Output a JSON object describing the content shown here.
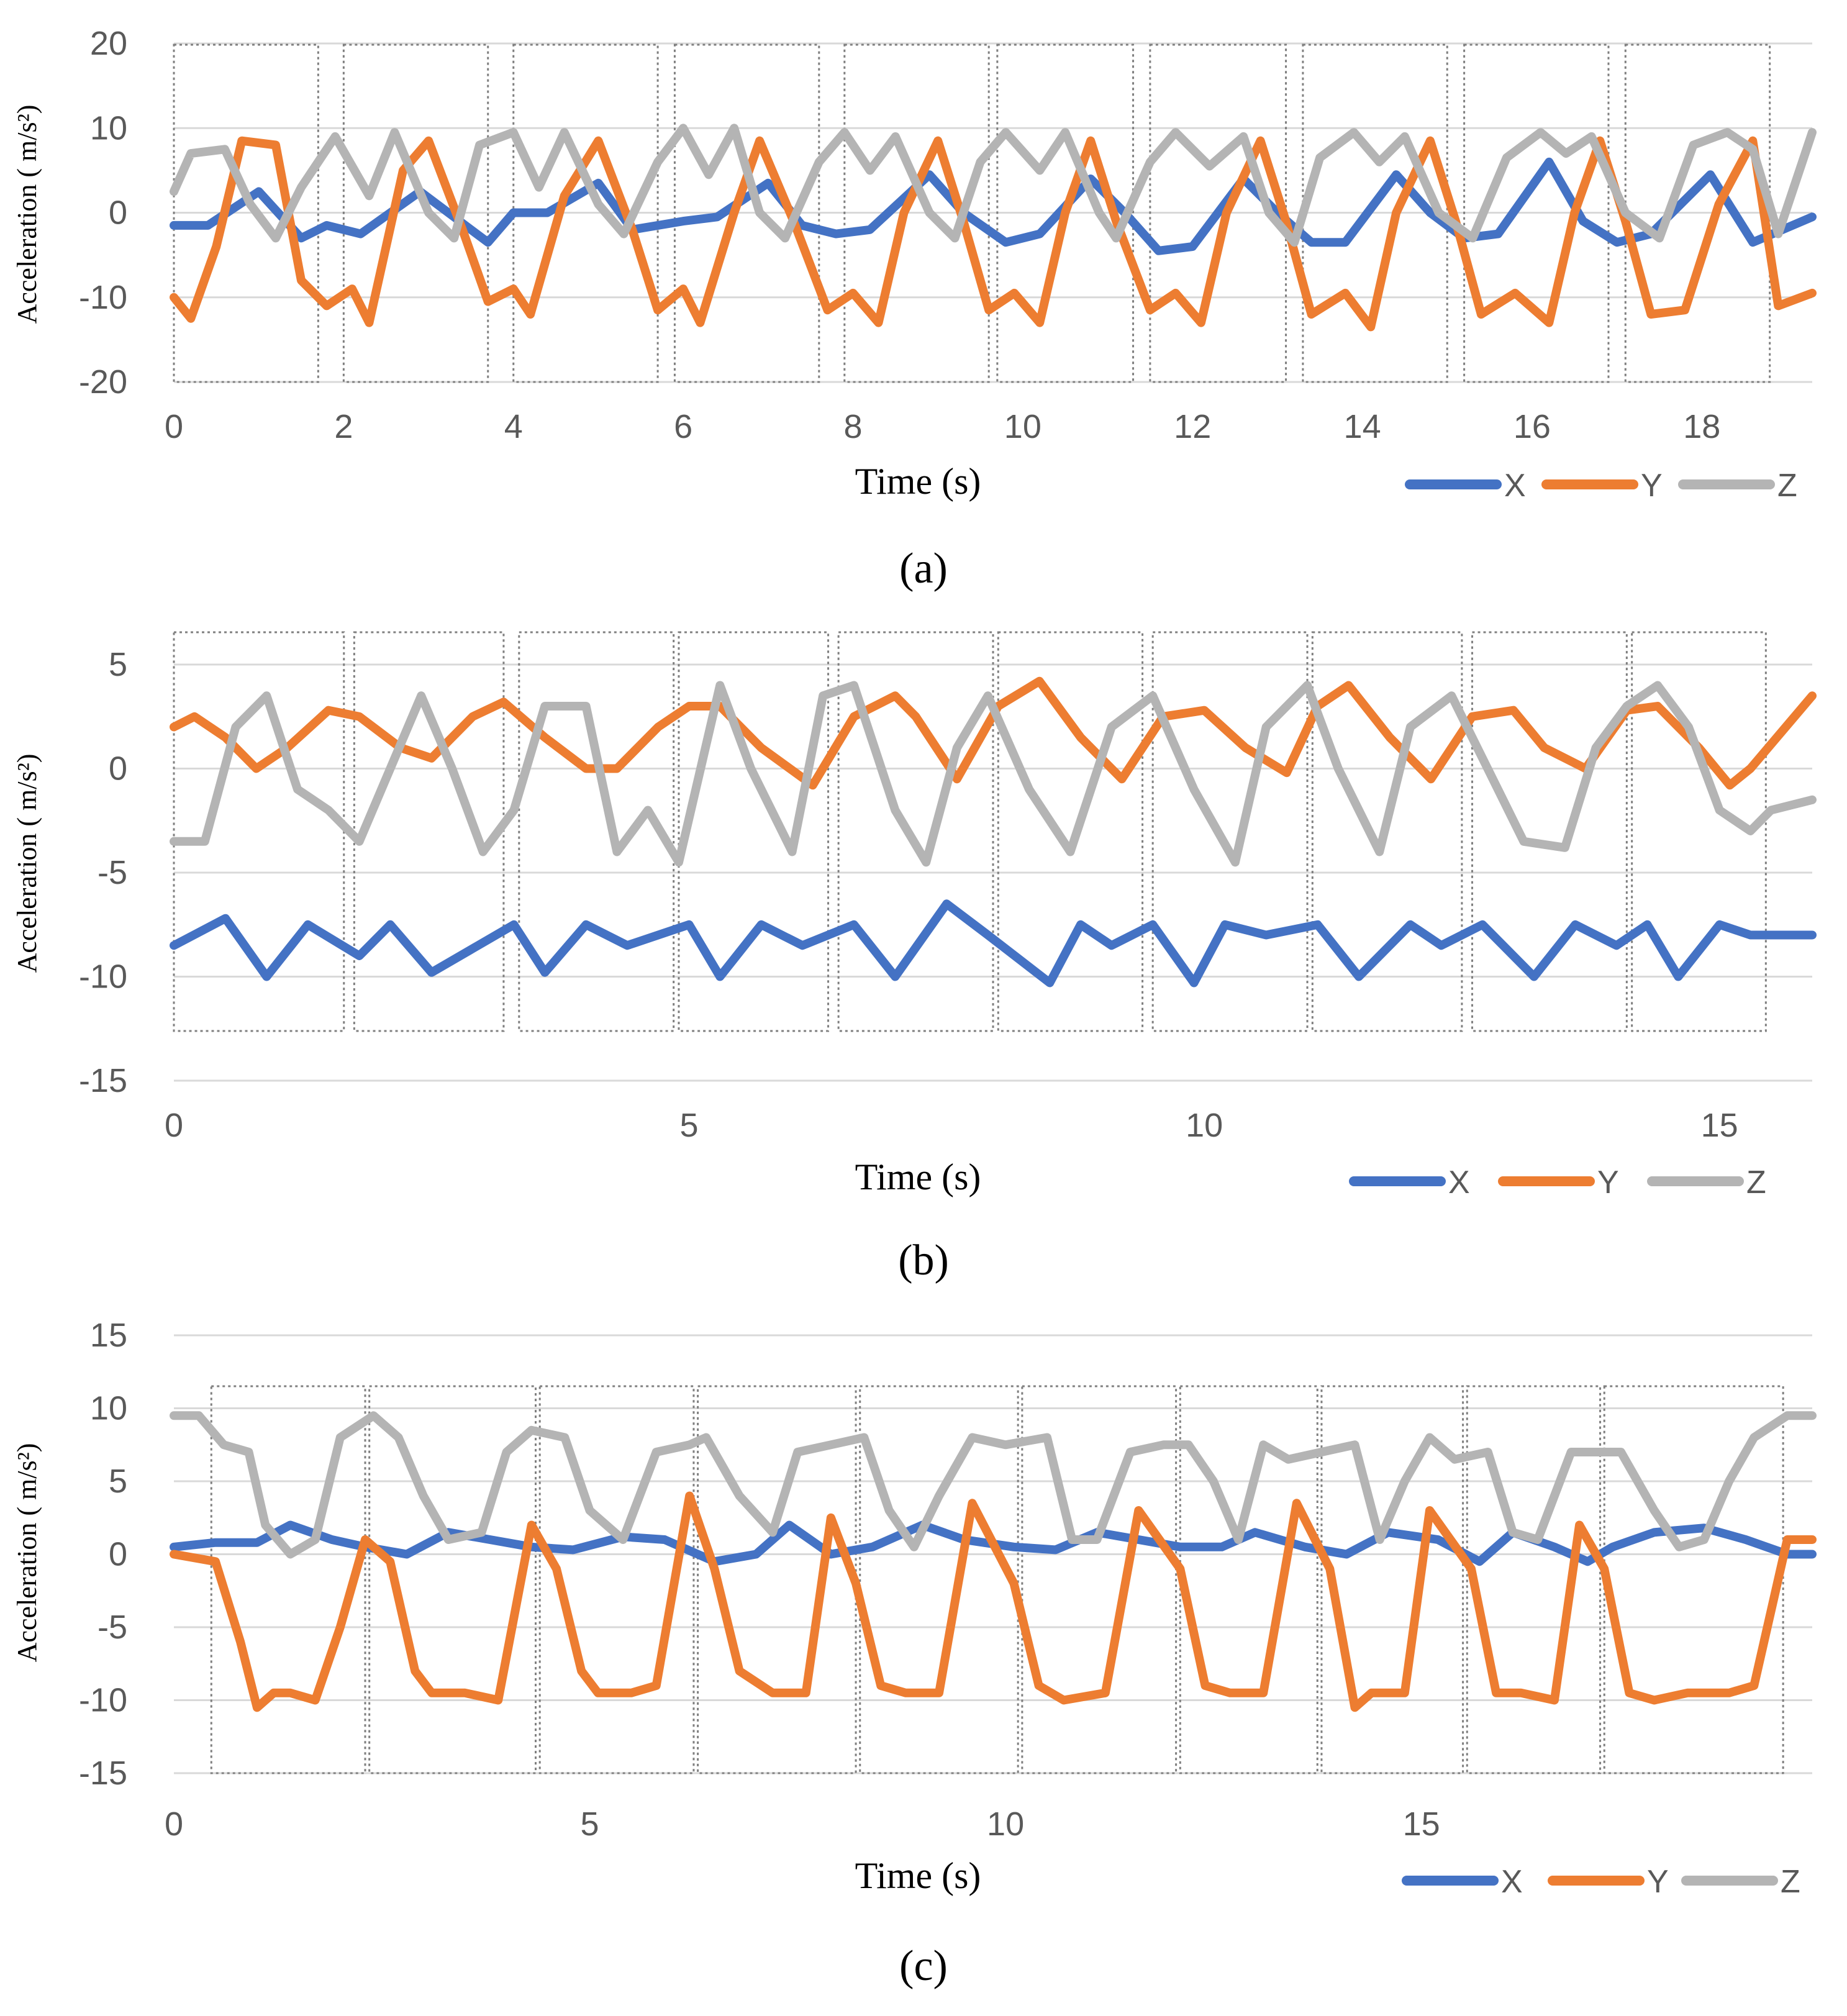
{
  "colors": {
    "X": "#4472c4",
    "Y": "#ed7d31",
    "Z": "#b4b4b4"
  },
  "chart_data": [
    {
      "type": "line",
      "panel_label": "(a)",
      "xlabel": "Time (s)",
      "ylabel": "Acceleration ( m/s²)",
      "xlim": [
        0,
        19.3
      ],
      "ylim": [
        -20,
        20
      ],
      "xticks": [
        "0",
        "2",
        "4",
        "6",
        "8",
        "10",
        "12",
        "14",
        "16",
        "18"
      ],
      "yticks": [
        "-20",
        "-10",
        "0",
        "10",
        "20"
      ],
      "legend": [
        "X",
        "Y",
        "Z"
      ],
      "legend_position": "bottom-right",
      "segments": [
        [
          0,
          1.7
        ],
        [
          2.0,
          3.7
        ],
        [
          4.0,
          5.7
        ],
        [
          5.9,
          7.6
        ],
        [
          7.9,
          9.6
        ],
        [
          9.7,
          11.3
        ],
        [
          11.5,
          13.1
        ],
        [
          13.3,
          15.0
        ],
        [
          15.2,
          16.9
        ],
        [
          17.1,
          18.8
        ]
      ],
      "series": [
        {
          "name": "X",
          "x": [
            0,
            0.4,
            1.0,
            1.5,
            1.8,
            2.2,
            2.9,
            3.3,
            3.7,
            4.0,
            4.4,
            5.0,
            5.4,
            6.0,
            6.4,
            7.0,
            7.4,
            7.8,
            8.2,
            8.9,
            9.3,
            9.8,
            10.2,
            10.8,
            11.2,
            11.6,
            12.0,
            12.6,
            13.0,
            13.4,
            13.8,
            14.4,
            14.8,
            15.2,
            15.6,
            16.2,
            16.6,
            17.0,
            17.4,
            18.1,
            18.6,
            19.3
          ],
          "values": [
            -1.5,
            -1.5,
            2.5,
            -3.0,
            -1.5,
            -2.5,
            2.5,
            -0.5,
            -3.5,
            0.0,
            0.0,
            3.5,
            -2.0,
            -1.0,
            -0.5,
            3.5,
            -1.5,
            -2.5,
            -2.0,
            4.5,
            0.0,
            -3.5,
            -2.5,
            4.0,
            0.0,
            -4.5,
            -4.0,
            4.0,
            0.0,
            -3.5,
            -3.5,
            4.5,
            0.0,
            -3.0,
            -2.5,
            6.0,
            -1.0,
            -3.5,
            -2.5,
            4.5,
            -3.5,
            -0.5
          ]
        },
        {
          "name": "Y",
          "x": [
            0,
            0.2,
            0.5,
            0.8,
            1.2,
            1.5,
            1.8,
            2.1,
            2.3,
            2.7,
            3.0,
            3.4,
            3.7,
            4.0,
            4.2,
            4.6,
            5.0,
            5.4,
            5.7,
            6.0,
            6.2,
            6.6,
            6.9,
            7.3,
            7.7,
            8.0,
            8.3,
            8.6,
            9.0,
            9.3,
            9.6,
            9.9,
            10.2,
            10.5,
            10.8,
            11.1,
            11.5,
            11.8,
            12.1,
            12.4,
            12.8,
            13.1,
            13.4,
            13.8,
            14.1,
            14.4,
            14.8,
            15.1,
            15.4,
            15.8,
            16.2,
            16.5,
            16.8,
            17.1,
            17.4,
            17.8,
            18.2,
            18.6,
            18.9,
            19.3
          ],
          "values": [
            -10,
            -12.5,
            -4,
            8.5,
            8,
            -8,
            -11,
            -9,
            -13,
            5,
            8.5,
            -2,
            -10.5,
            -9,
            -12,
            2,
            8.5,
            -2,
            -11.5,
            -9,
            -13,
            0,
            8.5,
            -1,
            -11.5,
            -9.5,
            -13,
            0,
            8.5,
            -1,
            -11.5,
            -9.5,
            -13,
            0,
            8.5,
            -1,
            -11.5,
            -9.5,
            -13,
            0,
            8.5,
            -1,
            -12,
            -9.5,
            -13.5,
            0,
            8.5,
            -1,
            -12,
            -9.5,
            -13,
            0,
            8.5,
            -1,
            -12,
            -11.5,
            1,
            8.5,
            -11,
            -9.5
          ]
        },
        {
          "name": "Z",
          "x": [
            0,
            0.2,
            0.6,
            0.9,
            1.2,
            1.5,
            1.9,
            2.3,
            2.6,
            3.0,
            3.3,
            3.6,
            4.0,
            4.3,
            4.6,
            5.0,
            5.3,
            5.7,
            6.0,
            6.3,
            6.6,
            6.9,
            7.2,
            7.6,
            7.9,
            8.2,
            8.5,
            8.9,
            9.2,
            9.5,
            9.8,
            10.2,
            10.5,
            10.9,
            11.1,
            11.5,
            11.8,
            12.2,
            12.6,
            12.9,
            13.2,
            13.5,
            13.9,
            14.2,
            14.5,
            14.9,
            15.3,
            15.7,
            16.1,
            16.4,
            16.7,
            17.1,
            17.5,
            17.9,
            18.3,
            18.6,
            18.9,
            19.3
          ],
          "values": [
            2.5,
            7,
            7.5,
            1,
            -3,
            3,
            9,
            2,
            9.5,
            0,
            -3,
            8,
            9.5,
            3,
            9.5,
            1,
            -2.5,
            6,
            10,
            4.5,
            10,
            0,
            -3,
            6,
            9.5,
            5,
            9,
            0,
            -3,
            6,
            9.5,
            5,
            9.5,
            0,
            -3,
            6,
            9.5,
            5.5,
            9,
            0,
            -3.5,
            6.5,
            9.5,
            6,
            9,
            0,
            -3,
            6.5,
            9.5,
            7,
            9,
            0,
            -3,
            8,
            9.5,
            7.5,
            -2.5,
            9.5
          ]
        }
      ]
    },
    {
      "type": "line",
      "panel_label": "(b)",
      "xlabel": "Time (s)",
      "ylabel": "Acceleration ( m/s²)",
      "xlim": [
        0,
        15.9
      ],
      "ylim": [
        -15,
        5
      ],
      "xticks": [
        "0",
        "5",
        "10",
        "15"
      ],
      "yticks": [
        "-15",
        "-10",
        "-5",
        "0",
        "5"
      ],
      "legend": [
        "X",
        "Y",
        "Z"
      ],
      "legend_position": "bottom-right",
      "segments": [
        [
          0,
          1.65
        ],
        [
          1.75,
          3.2
        ],
        [
          3.35,
          4.85
        ],
        [
          4.9,
          6.35
        ],
        [
          6.45,
          7.95
        ],
        [
          8.0,
          9.4
        ],
        [
          9.5,
          11.0
        ],
        [
          11.05,
          12.5
        ],
        [
          12.6,
          14.1
        ],
        [
          14.15,
          15.45
        ]
      ],
      "series": [
        {
          "name": "X",
          "x": [
            0,
            0.5,
            0.9,
            1.3,
            1.8,
            2.1,
            2.5,
            3.3,
            3.6,
            4.0,
            4.4,
            5.0,
            5.3,
            5.7,
            6.1,
            6.6,
            7.0,
            7.5,
            7.9,
            8.5,
            8.8,
            9.1,
            9.5,
            9.9,
            10.2,
            10.6,
            11.1,
            11.5,
            12.0,
            12.3,
            12.7,
            13.2,
            13.6,
            14.0,
            14.3,
            14.6,
            15.0,
            15.3,
            15.9
          ],
          "values": [
            -8.5,
            -7.2,
            -10,
            -7.5,
            -9,
            -7.5,
            -9.8,
            -7.5,
            -9.8,
            -7.5,
            -8.5,
            -7.5,
            -10,
            -7.5,
            -8.5,
            -7.5,
            -10,
            -6.5,
            -8,
            -10.3,
            -7.5,
            -8.5,
            -7.5,
            -10.3,
            -7.5,
            -8,
            -7.5,
            -10,
            -7.5,
            -8.5,
            -7.5,
            -10,
            -7.5,
            -8.5,
            -7.5,
            -10,
            -7.5,
            -8,
            -8
          ]
        },
        {
          "name": "Y",
          "x": [
            0,
            0.2,
            0.5,
            0.8,
            1.1,
            1.5,
            1.8,
            2.2,
            2.5,
            2.9,
            3.2,
            3.6,
            4.0,
            4.3,
            4.7,
            5.0,
            5.3,
            5.7,
            6.2,
            6.6,
            7.0,
            7.2,
            7.6,
            8.0,
            8.4,
            8.8,
            9.2,
            9.6,
            10.0,
            10.4,
            10.8,
            11.1,
            11.4,
            11.8,
            12.2,
            12.6,
            13.0,
            13.3,
            13.7,
            14.1,
            14.4,
            14.8,
            15.1,
            15.3,
            15.9
          ],
          "values": [
            2,
            2.5,
            1.5,
            0,
            1,
            2.8,
            2.5,
            1,
            0.5,
            2.5,
            3.2,
            1.5,
            0,
            0,
            2,
            3,
            3,
            1,
            -0.8,
            2.5,
            3.5,
            2.5,
            -0.5,
            3,
            4.2,
            1.5,
            -0.5,
            2.5,
            2.8,
            1,
            -0.2,
            3,
            4,
            1.5,
            -0.5,
            2.5,
            2.8,
            1,
            0,
            2.8,
            3,
            1,
            -0.8,
            0,
            3.5
          ]
        },
        {
          "name": "Z",
          "x": [
            0,
            0.3,
            0.6,
            0.9,
            1.2,
            1.5,
            1.8,
            2.1,
            2.4,
            2.7,
            3.0,
            3.3,
            3.6,
            4.0,
            4.3,
            4.6,
            4.9,
            5.3,
            5.6,
            6.0,
            6.3,
            6.6,
            7.0,
            7.3,
            7.6,
            7.9,
            8.3,
            8.7,
            9.1,
            9.5,
            9.9,
            10.3,
            10.6,
            11.0,
            11.3,
            11.7,
            12.0,
            12.4,
            12.8,
            13.1,
            13.5,
            13.8,
            14.1,
            14.4,
            14.7,
            15.0,
            15.3,
            15.5,
            15.9
          ],
          "values": [
            -3.5,
            -3.5,
            2,
            3.5,
            -1,
            -2,
            -3.5,
            0,
            3.5,
            0,
            -4,
            -2,
            3,
            3,
            -4,
            -2,
            -4.5,
            4,
            0,
            -4,
            3.5,
            4,
            -2,
            -4.5,
            1,
            3.5,
            -1,
            -4,
            2,
            3.5,
            -1,
            -4.5,
            2,
            4,
            0,
            -4,
            2,
            3.5,
            -0.5,
            -3.5,
            -3.8,
            1,
            3,
            4,
            2,
            -2,
            -3,
            -2,
            -1.5
          ]
        }
      ]
    },
    {
      "type": "line",
      "panel_label": "(c)",
      "xlabel": "Time (s)",
      "ylabel": "Acceleration ( m/s²)",
      "xlim": [
        0,
        19.7
      ],
      "ylim": [
        -15,
        15
      ],
      "xticks": [
        "0",
        "5",
        "10",
        "15"
      ],
      "yticks": [
        "-15",
        "-10",
        "-5",
        "0",
        "5",
        "10",
        "15"
      ],
      "legend": [
        "X",
        "Y",
        "Z"
      ],
      "legend_position": "bottom-right",
      "segments": [
        [
          0.45,
          2.3
        ],
        [
          2.35,
          4.35
        ],
        [
          4.4,
          6.25
        ],
        [
          6.3,
          8.2
        ],
        [
          8.25,
          10.15
        ],
        [
          10.2,
          12.05
        ],
        [
          12.1,
          13.75
        ],
        [
          13.8,
          15.5
        ],
        [
          15.55,
          17.15
        ],
        [
          17.2,
          19.35
        ]
      ],
      "series": [
        {
          "name": "X",
          "x": [
            0,
            0.5,
            1.0,
            1.4,
            1.9,
            2.3,
            2.8,
            3.3,
            3.8,
            4.3,
            4.8,
            5.4,
            5.9,
            6.5,
            7.0,
            7.4,
            7.9,
            8.4,
            9.0,
            9.5,
            10.1,
            10.6,
            11.1,
            11.6,
            12.1,
            12.6,
            13.0,
            13.6,
            14.1,
            14.6,
            15.2,
            15.7,
            16.1,
            16.6,
            17.0,
            17.3,
            17.8,
            18.4,
            18.9,
            19.4,
            19.7
          ],
          "values": [
            0.5,
            0.8,
            0.8,
            2,
            1,
            0.5,
            0,
            1.5,
            1,
            0.5,
            0.3,
            1.2,
            1,
            -0.5,
            0,
            2,
            0,
            0.5,
            2,
            1,
            0.5,
            0.3,
            1.5,
            1,
            0.5,
            0.5,
            1.5,
            0.5,
            0,
            1.5,
            1,
            -0.5,
            1.5,
            0.5,
            -0.5,
            0.5,
            1.5,
            1.8,
            1,
            0,
            0
          ]
        },
        {
          "name": "Y",
          "x": [
            0,
            0.5,
            0.8,
            1.0,
            1.2,
            1.4,
            1.7,
            2.0,
            2.3,
            2.6,
            2.9,
            3.1,
            3.5,
            3.9,
            4.3,
            4.6,
            4.9,
            5.1,
            5.5,
            5.8,
            6.2,
            6.5,
            6.8,
            7.2,
            7.6,
            7.9,
            8.2,
            8.5,
            8.8,
            9.2,
            9.6,
            10.1,
            10.4,
            10.7,
            11.2,
            11.6,
            12.1,
            12.4,
            12.7,
            13.1,
            13.5,
            13.9,
            14.2,
            14.4,
            14.8,
            15.1,
            15.6,
            15.9,
            16.2,
            16.6,
            16.9,
            17.2,
            17.5,
            17.8,
            18.2,
            18.7,
            19.0,
            19.4,
            19.7
          ],
          "values": [
            0,
            -0.5,
            -6,
            -10.5,
            -9.5,
            -9.5,
            -10,
            -5,
            1,
            -0.5,
            -8,
            -9.5,
            -9.5,
            -10,
            2,
            -1,
            -8,
            -9.5,
            -9.5,
            -9,
            4,
            -1,
            -8,
            -9.5,
            -9.5,
            2.5,
            -2,
            -9,
            -9.5,
            -9.5,
            3.5,
            -2,
            -9,
            -10,
            -9.5,
            3,
            -1,
            -9,
            -9.5,
            -9.5,
            3.5,
            -1,
            -10.5,
            -9.5,
            -9.5,
            3,
            -1,
            -9.5,
            -9.5,
            -10,
            2,
            -1,
            -9.5,
            -10,
            -9.5,
            -9.5,
            -9,
            1,
            1
          ]
        },
        {
          "name": "Z",
          "x": [
            0,
            0.3,
            0.6,
            0.9,
            1.1,
            1.4,
            1.7,
            2.0,
            2.4,
            2.7,
            3.0,
            3.3,
            3.7,
            4.0,
            4.3,
            4.7,
            5.0,
            5.4,
            5.8,
            6.2,
            6.4,
            6.8,
            7.2,
            7.5,
            7.9,
            8.3,
            8.6,
            8.9,
            9.2,
            9.6,
            10.0,
            10.5,
            10.8,
            11.1,
            11.5,
            11.9,
            12.2,
            12.5,
            12.8,
            13.1,
            13.4,
            13.8,
            14.2,
            14.5,
            14.8,
            15.1,
            15.4,
            15.8,
            16.1,
            16.4,
            16.8,
            17.1,
            17.4,
            17.8,
            18.1,
            18.4,
            18.7,
            19.0,
            19.4,
            19.7
          ],
          "values": [
            9.5,
            9.5,
            7.5,
            7,
            2,
            0,
            1,
            8,
            9.5,
            8,
            4,
            1,
            1.5,
            7,
            8.5,
            8,
            3,
            1,
            7,
            7.5,
            8,
            4,
            1.5,
            7,
            7.5,
            8,
            3,
            0.5,
            4,
            8,
            7.5,
            8,
            1,
            1,
            7,
            7.5,
            7.5,
            5,
            1,
            7.5,
            6.5,
            7,
            7.5,
            1,
            5,
            8,
            6.5,
            7,
            1.5,
            1,
            7,
            7,
            7,
            3,
            0.5,
            1,
            5,
            8,
            9.5,
            9.5
          ]
        }
      ]
    }
  ]
}
